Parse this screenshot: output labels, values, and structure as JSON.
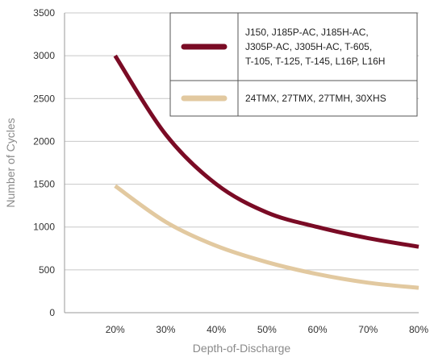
{
  "chart_data": {
    "type": "line",
    "xlabel": "Depth-of-Discharge",
    "ylabel": "Number of Cycles",
    "x": [
      20,
      30,
      40,
      50,
      60,
      70,
      80
    ],
    "x_tick_labels": [
      "20%",
      "30%",
      "40%",
      "50%",
      "60%",
      "70%",
      "80%"
    ],
    "xlim": [
      10,
      80
    ],
    "ylim": [
      0,
      3500
    ],
    "y_ticks": [
      0,
      500,
      1000,
      1500,
      2000,
      2500,
      3000,
      3500
    ],
    "y_tick_labels": [
      "0",
      "500",
      "1000",
      "1500",
      "2000",
      "2500",
      "3000",
      "3500"
    ],
    "grid": "horizontal",
    "legend_position": "top-right",
    "series": [
      {
        "legend_lines": [
          "J150, J185P-AC, J185H-AC,",
          "J305P-AC, J305H-AC, T-605,",
          "T-105, T-125, T-145, L16P, L16H"
        ],
        "color": "#7a0b25",
        "values": [
          3000,
          2080,
          1500,
          1170,
          1000,
          870,
          770
        ]
      },
      {
        "legend_lines": [
          "24TMX, 27TMX, 27TMH, 30XHS"
        ],
        "color": "#e2c9a0",
        "values": [
          1480,
          1060,
          780,
          590,
          450,
          350,
          290
        ]
      }
    ]
  }
}
